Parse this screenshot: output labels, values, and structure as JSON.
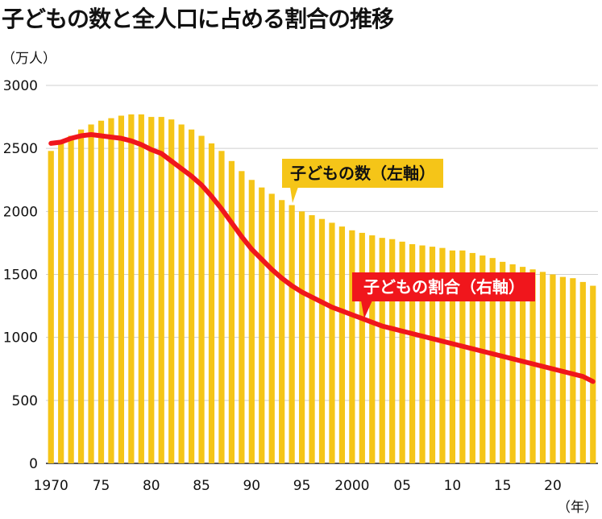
{
  "title": "子どもの数と全人口に占める割合の推移",
  "chart_data": {
    "type": "bar",
    "y_unit_label": "（万人）",
    "x_unit_label": "（年）",
    "ylim": [
      0,
      3000
    ],
    "yticks": [
      0,
      500,
      1000,
      1500,
      2000,
      2500,
      3000
    ],
    "x_tick_labels": [
      {
        "year": 1970,
        "label": "1970"
      },
      {
        "year": 1975,
        "label": "75"
      },
      {
        "year": 1980,
        "label": "80"
      },
      {
        "year": 1985,
        "label": "85"
      },
      {
        "year": 1990,
        "label": "90"
      },
      {
        "year": 1995,
        "label": "95"
      },
      {
        "year": 2000,
        "label": "2000"
      },
      {
        "year": 2005,
        "label": "05"
      },
      {
        "year": 2010,
        "label": "10"
      },
      {
        "year": 2015,
        "label": "15"
      },
      {
        "year": 2020,
        "label": "20"
      }
    ],
    "grid": true,
    "colors": {
      "bars": "#F5C518",
      "line": "#F0161C",
      "callout_bar": "#F5C518",
      "callout_line": "#F0161C"
    },
    "years": [
      1970,
      1971,
      1972,
      1973,
      1974,
      1975,
      1976,
      1977,
      1978,
      1979,
      1980,
      1981,
      1982,
      1983,
      1984,
      1985,
      1986,
      1987,
      1988,
      1989,
      1990,
      1991,
      1992,
      1993,
      1994,
      1995,
      1996,
      1997,
      1998,
      1999,
      2000,
      2001,
      2002,
      2003,
      2004,
      2005,
      2006,
      2007,
      2008,
      2009,
      2010,
      2011,
      2012,
      2013,
      2014,
      2015,
      2016,
      2017,
      2018,
      2019,
      2020,
      2021,
      2022,
      2023,
      2024
    ],
    "series": [
      {
        "name": "子どもの数（左軸）",
        "type": "bar",
        "axis": "left",
        "values": [
          2480,
          2550,
          2600,
          2650,
          2690,
          2720,
          2740,
          2760,
          2770,
          2770,
          2750,
          2750,
          2730,
          2690,
          2650,
          2600,
          2540,
          2480,
          2400,
          2320,
          2250,
          2190,
          2140,
          2090,
          2050,
          2000,
          1970,
          1940,
          1910,
          1880,
          1850,
          1830,
          1810,
          1790,
          1780,
          1760,
          1740,
          1730,
          1720,
          1710,
          1690,
          1690,
          1670,
          1650,
          1630,
          1600,
          1580,
          1560,
          1540,
          1520,
          1500,
          1480,
          1470,
          1440,
          1410
        ]
      },
      {
        "name": "子どもの割合（右軸）",
        "type": "line",
        "axis": "right",
        "values": [
          2540,
          2550,
          2580,
          2600,
          2610,
          2600,
          2590,
          2580,
          2560,
          2530,
          2490,
          2460,
          2400,
          2340,
          2280,
          2210,
          2120,
          2020,
          1910,
          1800,
          1700,
          1620,
          1540,
          1470,
          1410,
          1360,
          1320,
          1280,
          1240,
          1210,
          1180,
          1150,
          1120,
          1090,
          1070,
          1050,
          1030,
          1010,
          990,
          970,
          950,
          930,
          910,
          890,
          870,
          850,
          830,
          810,
          790,
          770,
          750,
          730,
          710,
          690,
          650
        ]
      }
    ]
  }
}
